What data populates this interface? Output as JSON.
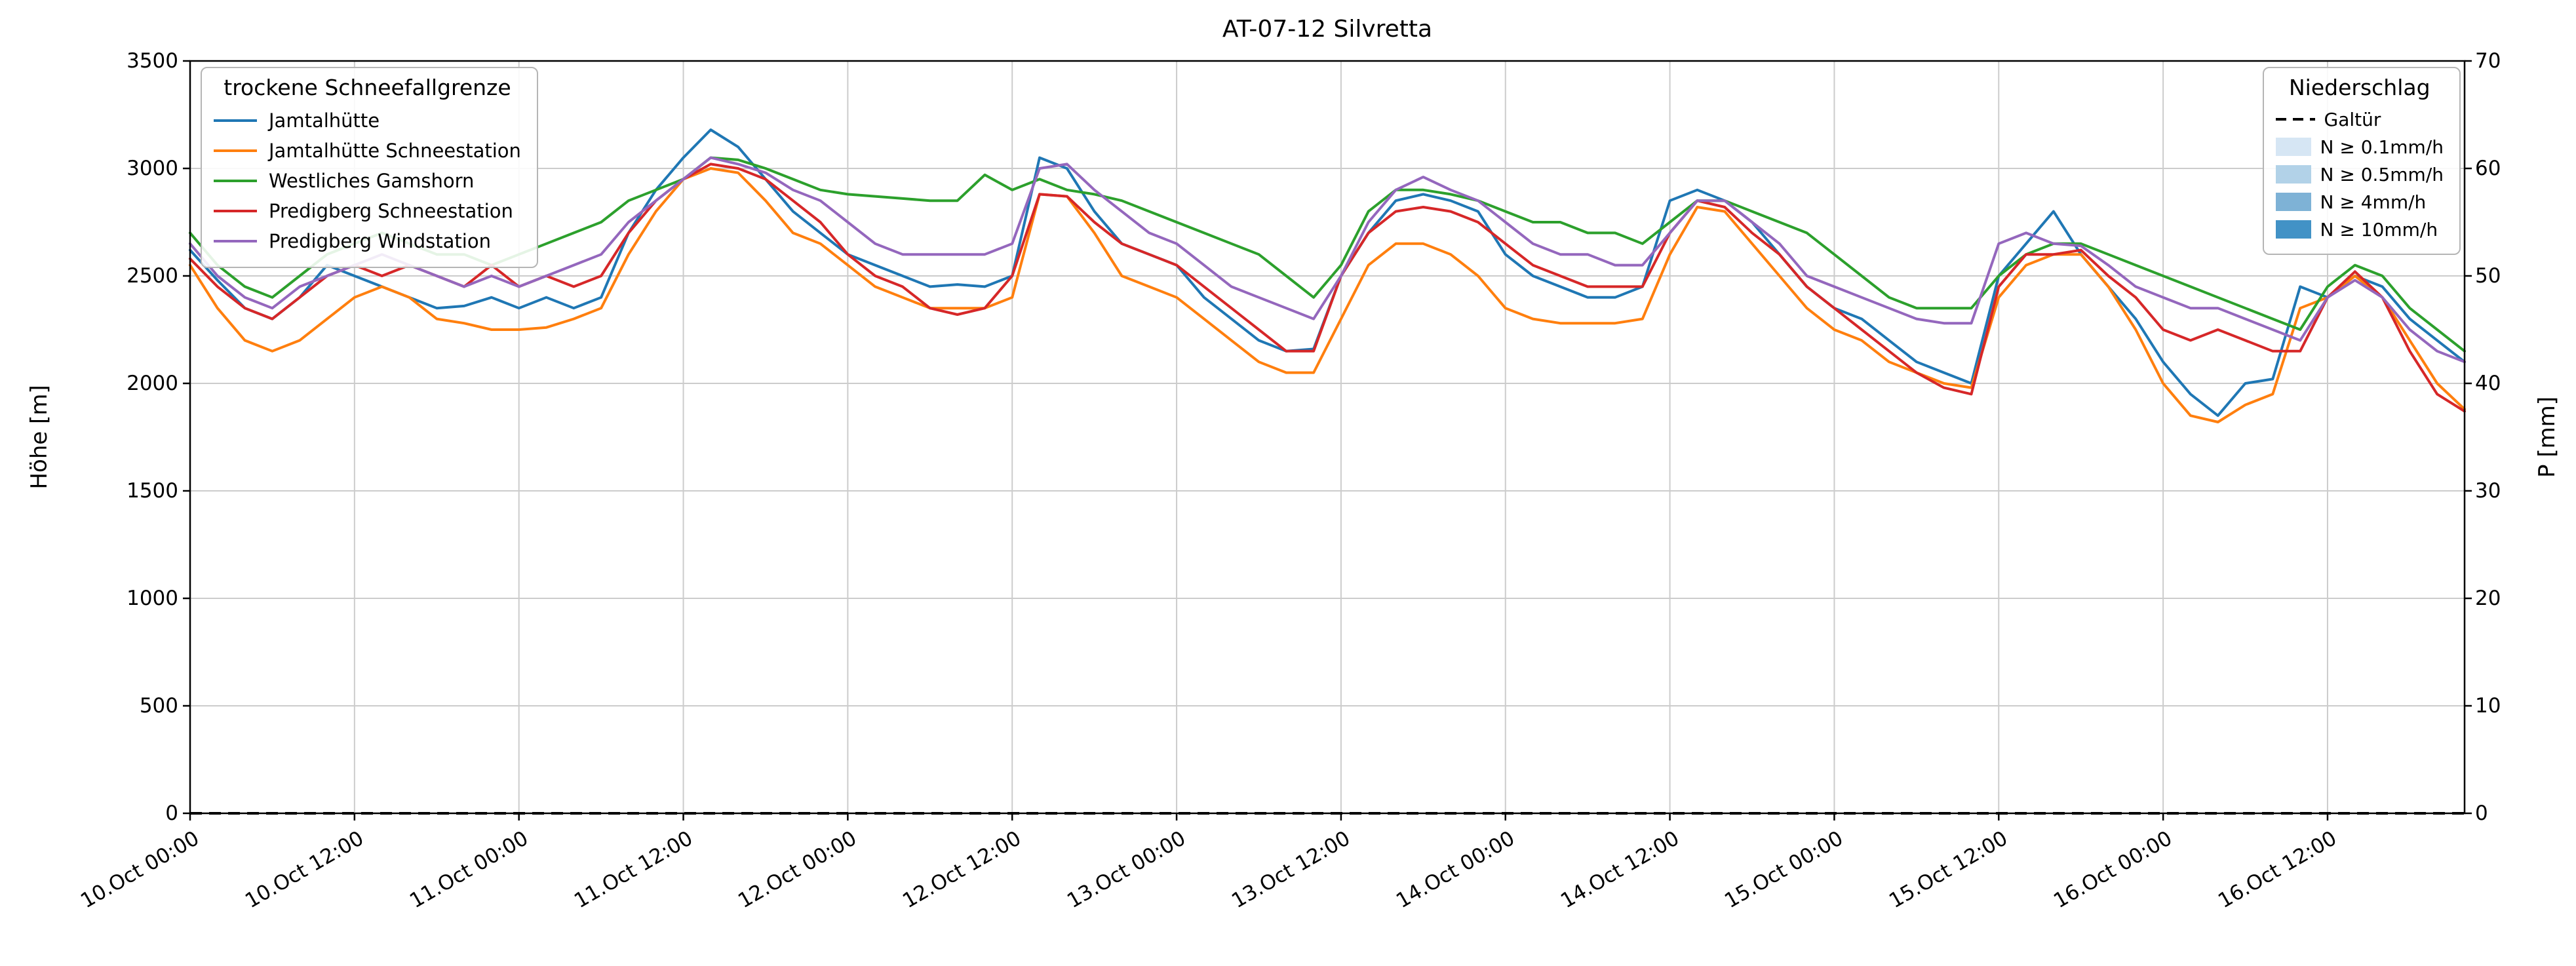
{
  "chart_data": {
    "type": "line",
    "title": "AT-07-12 Silvretta",
    "ylabel_left": "Höhe [m]",
    "ylabel_right": "P [mm]",
    "ylim_left": [
      0,
      3500
    ],
    "ylim_right": [
      0,
      70
    ],
    "yticks_left": [
      0,
      500,
      1000,
      1500,
      2000,
      2500,
      3000,
      3500
    ],
    "yticks_right": [
      0,
      10,
      20,
      30,
      40,
      50,
      60,
      70
    ],
    "grid": true,
    "x_start": "10.Oct 00:00",
    "x_step_hours": 2,
    "x_range_hours": [
      0,
      166
    ],
    "xticks": [
      {
        "hour": 0,
        "label": "10.Oct 00:00"
      },
      {
        "hour": 12,
        "label": "10.Oct 12:00"
      },
      {
        "hour": 24,
        "label": "11.Oct 00:00"
      },
      {
        "hour": 36,
        "label": "11.Oct 12:00"
      },
      {
        "hour": 48,
        "label": "12.Oct 00:00"
      },
      {
        "hour": 60,
        "label": "12.Oct 12:00"
      },
      {
        "hour": 72,
        "label": "13.Oct 00:00"
      },
      {
        "hour": 84,
        "label": "13.Oct 12:00"
      },
      {
        "hour": 96,
        "label": "14.Oct 00:00"
      },
      {
        "hour": 108,
        "label": "14.Oct 12:00"
      },
      {
        "hour": 120,
        "label": "15.Oct 00:00"
      },
      {
        "hour": 132,
        "label": "15.Oct 12:00"
      },
      {
        "hour": 144,
        "label": "16.Oct 00:00"
      },
      {
        "hour": 156,
        "label": "16.Oct 12:00"
      }
    ],
    "legend_left_title": "trockene Schneefallgrenze",
    "legend_right_title": "Niederschlag",
    "series": [
      {
        "name": "Jamtalhütte",
        "color": "#1f77b4",
        "values": [
          2620,
          2480,
          2350,
          2300,
          2400,
          2550,
          2500,
          2450,
          2400,
          2350,
          2360,
          2400,
          2350,
          2400,
          2350,
          2400,
          2700,
          2900,
          3050,
          3180,
          3100,
          2950,
          2800,
          2700,
          2600,
          2550,
          2500,
          2450,
          2460,
          2450,
          2500,
          3050,
          3000,
          2800,
          2650,
          2600,
          2550,
          2400,
          2300,
          2200,
          2150,
          2160,
          2500,
          2700,
          2850,
          2880,
          2850,
          2800,
          2600,
          2500,
          2450,
          2400,
          2400,
          2450,
          2850,
          2900,
          2850,
          2750,
          2600,
          2450,
          2350,
          2300,
          2200,
          2100,
          2050,
          2000,
          2500,
          2650,
          2800,
          2600,
          2450,
          2300,
          2100,
          1950,
          1850,
          2000,
          2020,
          2450,
          2400,
          2500,
          2450,
          2300,
          2200,
          2100
        ]
      },
      {
        "name": "Jamtalhütte Schneestation",
        "color": "#ff7f0e",
        "values": [
          2550,
          2350,
          2200,
          2150,
          2200,
          2300,
          2400,
          2450,
          2400,
          2300,
          2280,
          2250,
          2250,
          2260,
          2300,
          2350,
          2600,
          2800,
          2950,
          3000,
          2980,
          2850,
          2700,
          2650,
          2550,
          2450,
          2400,
          2350,
          2350,
          2350,
          2400,
          2880,
          2870,
          2700,
          2500,
          2450,
          2400,
          2300,
          2200,
          2100,
          2050,
          2050,
          2300,
          2550,
          2650,
          2650,
          2600,
          2500,
          2350,
          2300,
          2280,
          2280,
          2280,
          2300,
          2600,
          2820,
          2800,
          2650,
          2500,
          2350,
          2250,
          2200,
          2100,
          2050,
          2000,
          1980,
          2400,
          2550,
          2600,
          2600,
          2450,
          2250,
          2000,
          1850,
          1820,
          1900,
          1950,
          2350,
          2400,
          2500,
          2400,
          2200,
          2000,
          1880
        ]
      },
      {
        "name": "Westliches Gamshorn",
        "color": "#2ca02c",
        "values": [
          2700,
          2550,
          2450,
          2400,
          2500,
          2600,
          2650,
          2700,
          2650,
          2600,
          2600,
          2550,
          2600,
          2650,
          2700,
          2750,
          2850,
          2900,
          2950,
          3050,
          3040,
          3000,
          2950,
          2900,
          2880,
          2870,
          2860,
          2850,
          2850,
          2970,
          2900,
          2950,
          2900,
          2880,
          2850,
          2800,
          2750,
          2700,
          2650,
          2600,
          2500,
          2400,
          2550,
          2800,
          2900,
          2900,
          2880,
          2850,
          2800,
          2750,
          2750,
          2700,
          2700,
          2650,
          2750,
          2850,
          2850,
          2800,
          2750,
          2700,
          2600,
          2500,
          2400,
          2350,
          2350,
          2350,
          2500,
          2600,
          2650,
          2650,
          2600,
          2550,
          2500,
          2450,
          2400,
          2350,
          2300,
          2250,
          2450,
          2550,
          2500,
          2350,
          2250,
          2150
        ]
      },
      {
        "name": "Predigberg Schneestation",
        "color": "#d62728",
        "values": [
          2580,
          2450,
          2350,
          2300,
          2400,
          2500,
          2550,
          2500,
          2550,
          2500,
          2450,
          2550,
          2450,
          2500,
          2450,
          2500,
          2700,
          2850,
          2950,
          3020,
          3000,
          2950,
          2850,
          2750,
          2600,
          2500,
          2450,
          2350,
          2320,
          2350,
          2500,
          2880,
          2870,
          2750,
          2650,
          2600,
          2550,
          2450,
          2350,
          2250,
          2150,
          2150,
          2500,
          2700,
          2800,
          2820,
          2800,
          2750,
          2650,
          2550,
          2500,
          2450,
          2450,
          2450,
          2700,
          2850,
          2820,
          2700,
          2600,
          2450,
          2350,
          2250,
          2150,
          2050,
          1980,
          1950,
          2450,
          2600,
          2600,
          2620,
          2500,
          2400,
          2250,
          2200,
          2250,
          2200,
          2150,
          2150,
          2400,
          2520,
          2400,
          2150,
          1950,
          1870
        ]
      },
      {
        "name": "Predigberg Windstation",
        "color": "#9467bd",
        "values": [
          2650,
          2500,
          2400,
          2350,
          2450,
          2500,
          2550,
          2600,
          2550,
          2500,
          2450,
          2500,
          2450,
          2500,
          2550,
          2600,
          2750,
          2850,
          2950,
          3050,
          3020,
          2980,
          2900,
          2850,
          2750,
          2650,
          2600,
          2600,
          2600,
          2600,
          2650,
          3000,
          3020,
          2900,
          2800,
          2700,
          2650,
          2550,
          2450,
          2400,
          2350,
          2300,
          2500,
          2750,
          2900,
          2960,
          2900,
          2850,
          2750,
          2650,
          2600,
          2600,
          2550,
          2550,
          2700,
          2850,
          2850,
          2750,
          2650,
          2500,
          2450,
          2400,
          2350,
          2300,
          2280,
          2280,
          2650,
          2700,
          2650,
          2640,
          2550,
          2450,
          2400,
          2350,
          2350,
          2300,
          2250,
          2200,
          2400,
          2480,
          2400,
          2250,
          2150,
          2100
        ]
      }
    ],
    "precip_line": {
      "name": "Galtür",
      "style": "dashed",
      "color": "#000000",
      "value_constant": 0
    },
    "precip_levels": [
      {
        "label": "N ≥ 0.1mm/h",
        "color": "#d6e6f4"
      },
      {
        "label": "N ≥ 0.5mm/h",
        "color": "#b2d2e8"
      },
      {
        "label": "N ≥ 4mm/h",
        "color": "#7eb2d6"
      },
      {
        "label": "N ≥ 10mm/h",
        "color": "#4292c6"
      }
    ]
  }
}
